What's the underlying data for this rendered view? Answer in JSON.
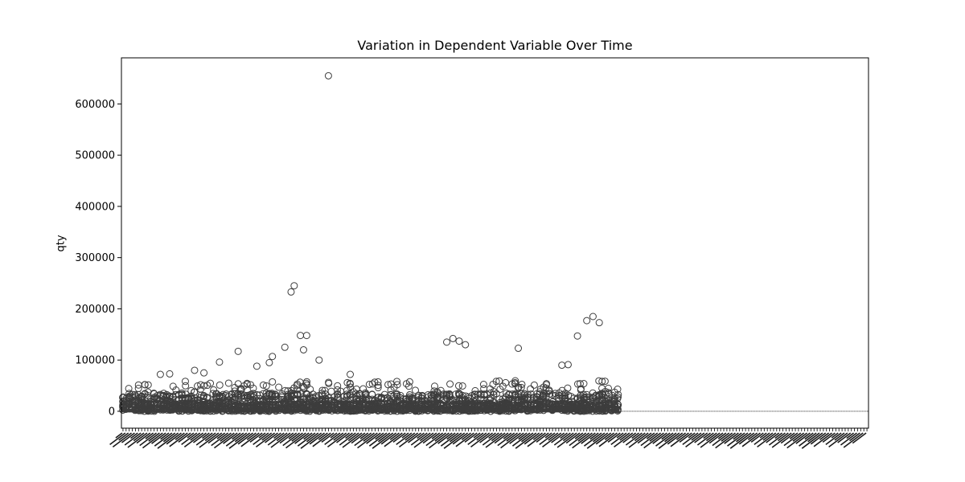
{
  "chart_data": {
    "type": "box",
    "title": "Variation in Dependent Variable Over Time",
    "xlabel": "",
    "ylabel": "qty",
    "ylim": [
      -33000,
      690000
    ],
    "yticks": [
      0,
      100000,
      200000,
      300000,
      400000,
      500000,
      600000
    ],
    "ytick_labels": [
      "0",
      "100000",
      "200000",
      "300000",
      "400000",
      "500000",
      "600000"
    ],
    "grid": false,
    "category_count": 240,
    "categories_with_data": 160,
    "xtick_labels_legible": false,
    "box_color": "#3d3d3d",
    "notable_outliers": [
      {
        "category_index": 66,
        "value": 655000
      },
      {
        "category_index": 55,
        "value": 245000
      },
      {
        "category_index": 54,
        "value": 233000
      },
      {
        "category_index": 151,
        "value": 185000
      },
      {
        "category_index": 149,
        "value": 177000
      },
      {
        "category_index": 153,
        "value": 173000
      },
      {
        "category_index": 146,
        "value": 147000
      },
      {
        "category_index": 57,
        "value": 148000
      },
      {
        "category_index": 59,
        "value": 148000
      },
      {
        "category_index": 106,
        "value": 142000
      },
      {
        "category_index": 108,
        "value": 137000
      },
      {
        "category_index": 104,
        "value": 135000
      },
      {
        "category_index": 110,
        "value": 130000
      },
      {
        "category_index": 52,
        "value": 125000
      },
      {
        "category_index": 127,
        "value": 123000
      },
      {
        "category_index": 58,
        "value": 120000
      },
      {
        "category_index": 37,
        "value": 117000
      },
      {
        "category_index": 48,
        "value": 107000
      },
      {
        "category_index": 63,
        "value": 100000
      },
      {
        "category_index": 31,
        "value": 96000
      },
      {
        "category_index": 47,
        "value": 95000
      },
      {
        "category_index": 143,
        "value": 91000
      },
      {
        "category_index": 141,
        "value": 90000
      },
      {
        "category_index": 43,
        "value": 88000
      },
      {
        "category_index": 73,
        "value": 72000
      },
      {
        "category_index": 12,
        "value": 72000
      },
      {
        "category_index": 15,
        "value": 73000
      },
      {
        "category_index": 26,
        "value": 75000
      },
      {
        "category_index": 23,
        "value": 80000
      }
    ]
  }
}
